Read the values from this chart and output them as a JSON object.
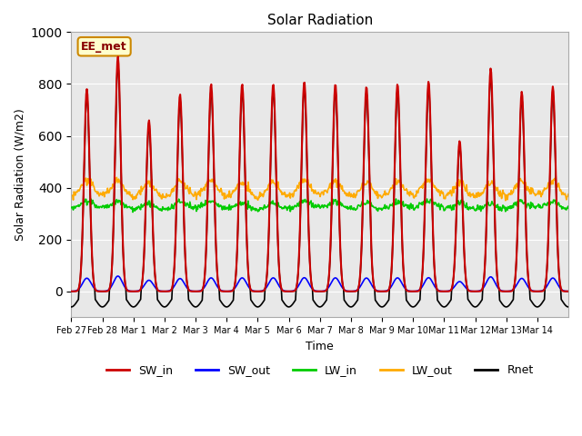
{
  "title": "Solar Radiation",
  "ylabel": "Solar Radiation (W/m2)",
  "xlabel": "Time",
  "ylim": [
    -100,
    1000
  ],
  "annotation": "EE_met",
  "annotation_bg": "#ffffcc",
  "annotation_border": "#cc8800",
  "bg_color": "#e8e8e8",
  "grid_color": "white",
  "series": {
    "SW_in": {
      "color": "#cc0000",
      "lw": 1.5
    },
    "SW_out": {
      "color": "#0000ff",
      "lw": 1.2
    },
    "LW_in": {
      "color": "#00cc00",
      "lw": 1.2
    },
    "LW_out": {
      "color": "#ffaa00",
      "lw": 1.2
    },
    "Rnet": {
      "color": "#000000",
      "lw": 1.2
    }
  },
  "x_tick_labels": [
    "Feb 27",
    "Feb 28",
    "Mar 1",
    "Mar 2",
    "Mar 3",
    "Mar 4",
    "Mar 5",
    "Mar 6",
    "Mar 7",
    "Mar 8",
    "Mar 9",
    "Mar 10",
    "Mar 11",
    "Mar 12",
    "Mar 13",
    "Mar 14"
  ],
  "peaks_sw": [
    780,
    905,
    660,
    760,
    800,
    800,
    800,
    810,
    800,
    790,
    800,
    810,
    580,
    860,
    770,
    790
  ],
  "n_days": 16
}
